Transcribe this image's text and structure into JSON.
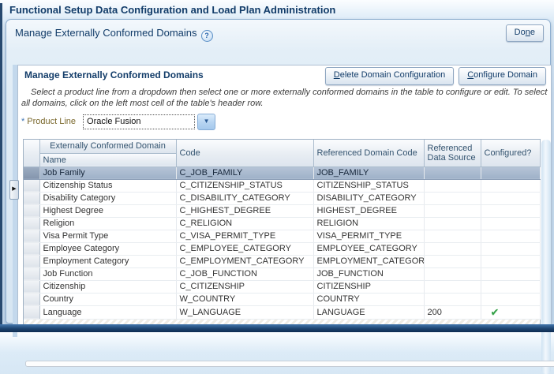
{
  "window": {
    "title": "Functional Setup Data Configuration and Load Plan Administration"
  },
  "page": {
    "title": "Manage Externally Conformed Domains",
    "done_button": {
      "label": "Done",
      "underline_index": 2
    }
  },
  "panel": {
    "title": "Manage Externally Conformed Domains",
    "buttons": {
      "delete": {
        "label": "Delete Domain Configuration",
        "underline_index": 0
      },
      "configure": {
        "label": "Configure Domain",
        "underline_index": 0
      }
    },
    "instructions": "Select a product line from a dropdown then select one or more externally conformed domains in the table to configure or edit. To select all domains, click on the left most cell of the table's header row.",
    "product_line": {
      "required_marker": "*",
      "label": "Product Line",
      "value": "Oracle Fusion"
    }
  },
  "table": {
    "headers": {
      "group": "Externally Conformed Domain",
      "name": "Name",
      "code": "Code",
      "ref_domain_code": "Referenced Domain Code",
      "ref_data_source": "Referenced Data Source",
      "configured": "Configured?"
    },
    "rows": [
      {
        "name": "Job Family",
        "code": "C_JOB_FAMILY",
        "ref_domain_code": "JOB_FAMILY",
        "ref_data_source": "",
        "configured": false,
        "selected": true
      },
      {
        "name": "Citizenship Status",
        "code": "C_CITIZENSHIP_STATUS",
        "ref_domain_code": "CITIZENSHIP_STATUS",
        "ref_data_source": "",
        "configured": false,
        "selected": false
      },
      {
        "name": "Disability Category",
        "code": "C_DISABILITY_CATEGORY",
        "ref_domain_code": "DISABILITY_CATEGORY",
        "ref_data_source": "",
        "configured": false,
        "selected": false
      },
      {
        "name": "Highest Degree",
        "code": "C_HIGHEST_DEGREE",
        "ref_domain_code": "HIGHEST_DEGREE",
        "ref_data_source": "",
        "configured": false,
        "selected": false
      },
      {
        "name": "Religion",
        "code": "C_RELIGION",
        "ref_domain_code": "RELIGION",
        "ref_data_source": "",
        "configured": false,
        "selected": false
      },
      {
        "name": "Visa Permit Type",
        "code": "C_VISA_PERMIT_TYPE",
        "ref_domain_code": "VISA_PERMIT_TYPE",
        "ref_data_source": "",
        "configured": false,
        "selected": false
      },
      {
        "name": "Employee Category",
        "code": "C_EMPLOYEE_CATEGORY",
        "ref_domain_code": "EMPLOYEE_CATEGORY",
        "ref_data_source": "",
        "configured": false,
        "selected": false
      },
      {
        "name": "Employment Category",
        "code": "C_EMPLOYMENT_CATEGORY",
        "ref_domain_code": "EMPLOYMENT_CATEGORY",
        "ref_data_source": "",
        "configured": false,
        "selected": false
      },
      {
        "name": "Job Function",
        "code": "C_JOB_FUNCTION",
        "ref_domain_code": "JOB_FUNCTION",
        "ref_data_source": "",
        "configured": false,
        "selected": false
      },
      {
        "name": "Citizenship",
        "code": "C_CITIZENSHIP",
        "ref_domain_code": "CITIZENSHIP",
        "ref_data_source": "",
        "configured": false,
        "selected": false
      },
      {
        "name": "Country",
        "code": "W_COUNTRY",
        "ref_domain_code": "COUNTRY",
        "ref_data_source": "",
        "configured": false,
        "selected": false
      },
      {
        "name": "Language",
        "code": "W_LANGUAGE",
        "ref_domain_code": "LANGUAGE",
        "ref_data_source": "200",
        "configured": true,
        "selected": false
      }
    ]
  },
  "icons": {
    "help": "?",
    "dropdown_arrow": "▼",
    "splitter_arrow": "▶",
    "configured_check": "✔"
  },
  "colors": {
    "accent_navy": "#123c69",
    "label_olive": "#7a682c",
    "check_green": "#2f9e44",
    "selected_row": "#9eb1c8",
    "frame_navy": "#1d4470"
  }
}
